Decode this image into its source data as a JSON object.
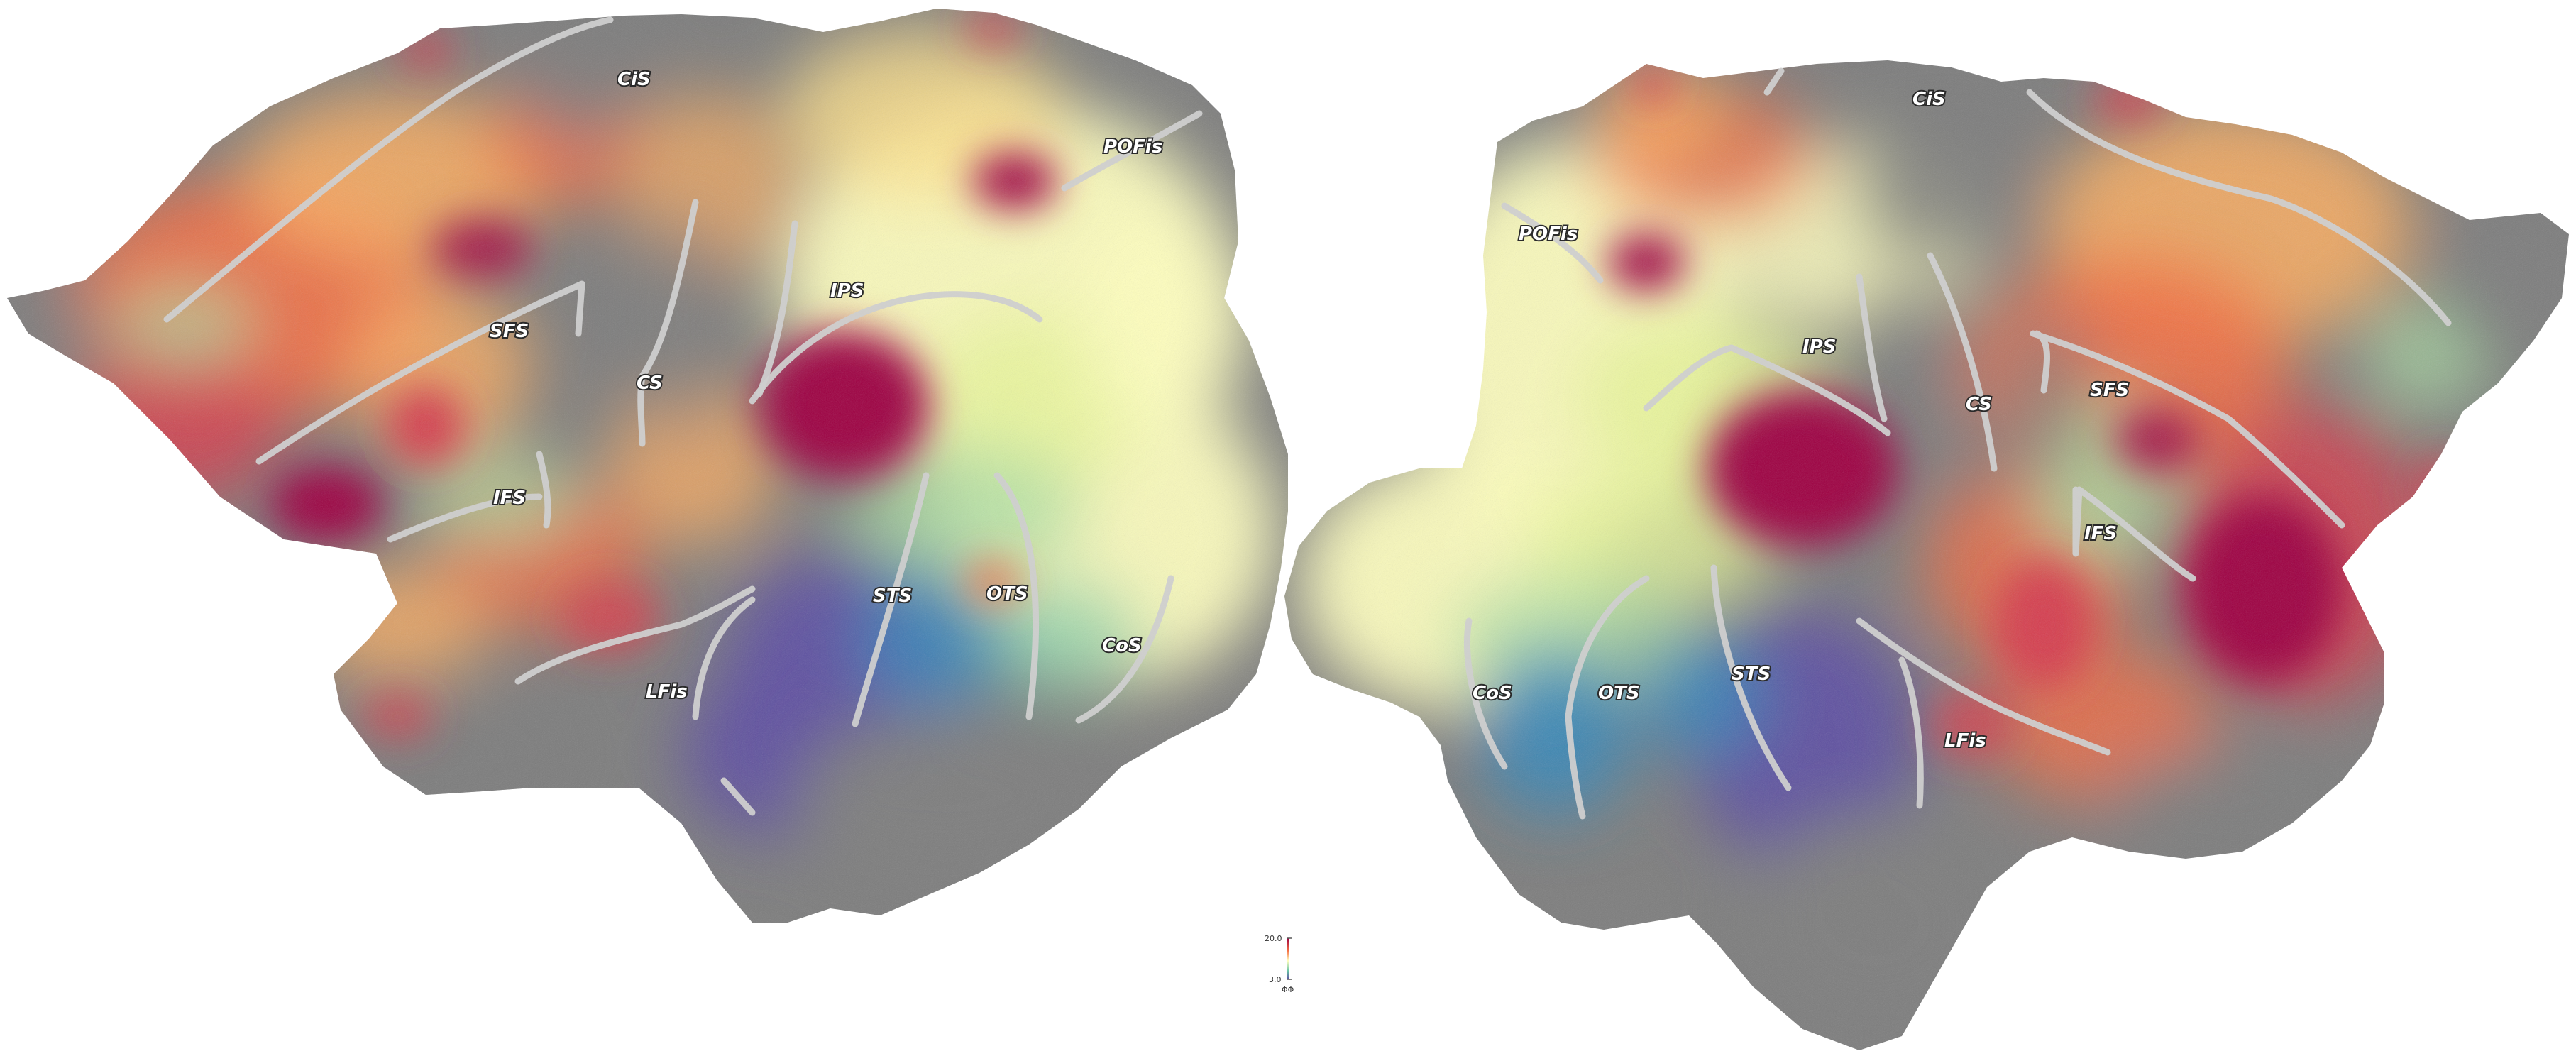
{
  "hemispheres": {
    "left": {
      "labels": [
        {
          "id": "cis",
          "text": "CiS"
        },
        {
          "id": "pofis",
          "text": "POFis"
        },
        {
          "id": "ips",
          "text": "IPS"
        },
        {
          "id": "sfs",
          "text": "SFS"
        },
        {
          "id": "cs",
          "text": "CS"
        },
        {
          "id": "ifs",
          "text": "IFS"
        },
        {
          "id": "sts",
          "text": "STS"
        },
        {
          "id": "ots",
          "text": "OTS"
        },
        {
          "id": "cos",
          "text": "CoS"
        },
        {
          "id": "lfis",
          "text": "LFis"
        }
      ]
    },
    "right": {
      "labels": [
        {
          "id": "cis",
          "text": "CiS"
        },
        {
          "id": "pofis",
          "text": "POFis"
        },
        {
          "id": "ips",
          "text": "IPS"
        },
        {
          "id": "cs",
          "text": "CS"
        },
        {
          "id": "sfs",
          "text": "SFS"
        },
        {
          "id": "ifs",
          "text": "IFS"
        },
        {
          "id": "cos",
          "text": "CoS"
        },
        {
          "id": "ots",
          "text": "OTS"
        },
        {
          "id": "sts",
          "text": "STS"
        },
        {
          "id": "lfis",
          "text": "LFis"
        }
      ]
    }
  },
  "colorbar": {
    "max_label": "20.0",
    "min_label": "3.0",
    "units_label": "ΦΦ"
  },
  "colors": {
    "curvature_gray": "#7d7d7d",
    "dark_red": "#9e0142",
    "red": "#d53e4f",
    "orange": "#f46d43",
    "light_orange": "#fdae61",
    "pale_yellow": "#fee08b",
    "cream": "#ffffbf",
    "light_green": "#e6f598",
    "green_teal": "#abdda4",
    "teal": "#66c2a5",
    "blue": "#3288bd",
    "purple": "#5e4fa2",
    "sulcus_line": "#cfcfcf"
  }
}
